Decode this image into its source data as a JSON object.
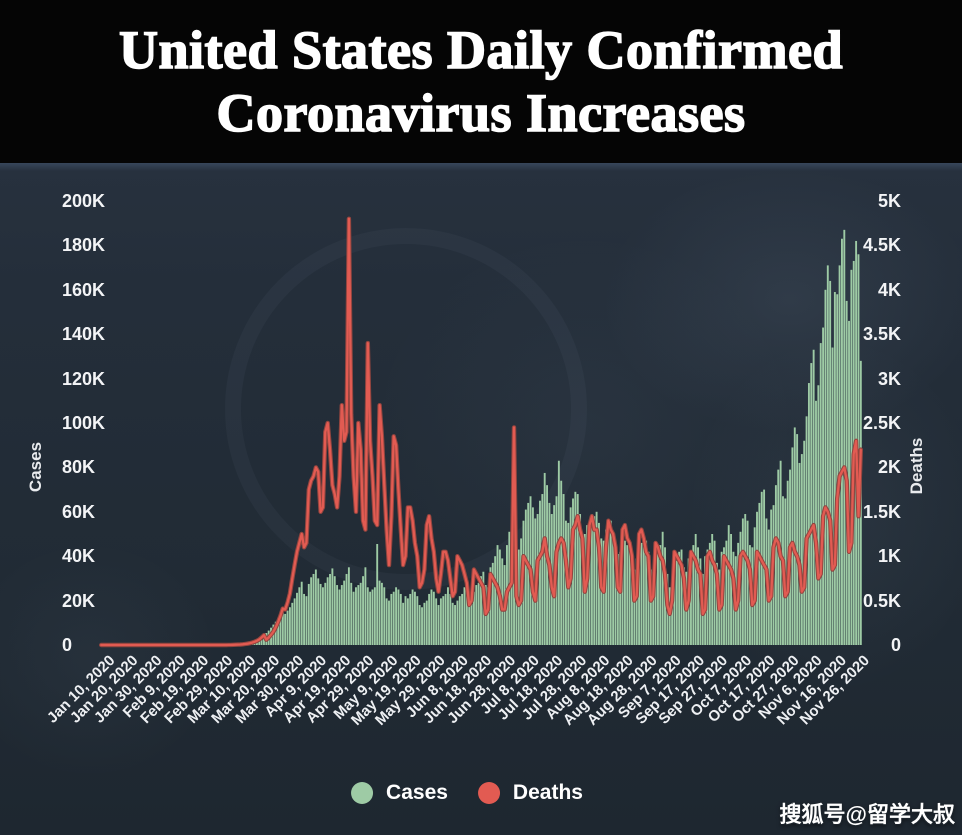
{
  "page": {
    "watermark": "搜狐号@留学大叔"
  },
  "chart_data": {
    "type": "combo",
    "title": "United States Daily Confirmed Coronavirus Increases",
    "title_line1": "United States Daily Confirmed",
    "title_line2": "Coronavirus Increases",
    "grid": false,
    "legend_position": "bottom",
    "background_color": "#232d39",
    "tick_every": 10,
    "x_tick_labels": [
      "Jan 10, 2020",
      "Jan 20, 2020",
      "Jan 30, 2020",
      "Feb 9, 2020",
      "Feb 19, 2020",
      "Feb 29, 2020",
      "Mar 10, 2020",
      "Mar 20, 2020",
      "Mar 30, 2020",
      "Apr 9, 2020",
      "Apr 19, 2020",
      "Apr 29, 2020",
      "May 9, 2020",
      "May 19, 2020",
      "May 29, 2020",
      "Jun 8, 2020",
      "Jun 18, 2020",
      "Jun 28, 2020",
      "Jul 8, 2020",
      "Jul 18, 2020",
      "Jul 28, 2020",
      "Aug 8, 2020",
      "Aug 18, 2020",
      "Aug 28, 2020",
      "Sep 7, 2020",
      "Sep 17, 2020",
      "Sep 27, 2020",
      "Oct 7, 2020",
      "Oct 17, 2020",
      "Oct 27, 2020",
      "Nov 6, 2020",
      "Nov 16, 2020",
      "Nov 26, 2020"
    ],
    "axes": {
      "left": {
        "label": "Cases",
        "max": 200000,
        "range": [
          0,
          200000
        ],
        "ticks": [
          "0",
          "20K",
          "40K",
          "60K",
          "80K",
          "100K",
          "120K",
          "140K",
          "160K",
          "180K",
          "200K"
        ]
      },
      "right": {
        "label": "Deaths",
        "max": 5000,
        "range": [
          0,
          5000
        ],
        "ticks": [
          "0",
          "0.5K",
          "1K",
          "1.5K",
          "2K",
          "2.5K",
          "3K",
          "3.5K",
          "4K",
          "4.5K",
          "5K"
        ]
      }
    },
    "legend": [
      {
        "label": "Cases",
        "color": "#9ecba5"
      },
      {
        "label": "Deaths",
        "color": "#e25b52"
      }
    ],
    "series": [
      {
        "name": "Cases",
        "type": "bar",
        "axis": "left",
        "color": "#9ecba5",
        "values": [
          0,
          0,
          0,
          0,
          0,
          0,
          0,
          0,
          0,
          0,
          0,
          0,
          0,
          0,
          0,
          0,
          0,
          0,
          0,
          0,
          0,
          0,
          0,
          0,
          0,
          0,
          0,
          0,
          0,
          0,
          0,
          0,
          0,
          0,
          0,
          0,
          0,
          0,
          0,
          0,
          0,
          0,
          0,
          0,
          0,
          0,
          0,
          0,
          0,
          0,
          0,
          10,
          10,
          20,
          30,
          50,
          70,
          100,
          150,
          220,
          320,
          450,
          600,
          800,
          1100,
          1500,
          2000,
          2700,
          3500,
          4400,
          5400,
          6500,
          7800,
          9200,
          10500,
          12000,
          13500,
          14500,
          14000,
          15500,
          17000,
          19000,
          21000,
          23500,
          26000,
          28500,
          23000,
          22000,
          27500,
          30500,
          32000,
          34000,
          30000,
          27500,
          26000,
          28000,
          30500,
          32000,
          34500,
          31000,
          27000,
          25000,
          27000,
          29000,
          32000,
          35000,
          28000,
          24000,
          26000,
          27000,
          28000,
          31000,
          35000,
          26000,
          24000,
          25000,
          26000,
          45500,
          29000,
          28000,
          26000,
          21000,
          20000,
          23000,
          24000,
          26000,
          25000,
          23000,
          19000,
          22000,
          21000,
          23000,
          25000,
          24000,
          22000,
          18000,
          17000,
          19000,
          20000,
          23000,
          25000,
          24000,
          21000,
          18000,
          21000,
          22000,
          23000,
          26000,
          23000,
          19000,
          18000,
          20000,
          22000,
          23000,
          26000,
          25000,
          21000,
          19000,
          24000,
          27000,
          28000,
          31000,
          33000,
          27000,
          26000,
          35000,
          37000,
          40000,
          45000,
          43000,
          39000,
          36000,
          45000,
          51000,
          55000,
          57000,
          46000,
          43000,
          48000,
          56000,
          61000,
          64000,
          67000,
          62000,
          57000,
          59000,
          65000,
          68000,
          77500,
          72000,
          64000,
          59000,
          63000,
          67000,
          83000,
          74000,
          68000,
          56000,
          55000,
          62000,
          66000,
          69000,
          68000,
          59000,
          48000,
          50000,
          54000,
          56000,
          59000,
          58000,
          60000,
          55000,
          48000,
          47000,
          52000,
          54000,
          56000,
          51000,
          43000,
          41000,
          42000,
          45000,
          47000,
          45000,
          43000,
          35000,
          34000,
          39000,
          44000,
          46000,
          45000,
          47000,
          42000,
          34000,
          33000,
          40000,
          41000,
          45000,
          51000,
          44000,
          32000,
          26000,
          28000,
          36000,
          38000,
          42000,
          43000,
          35000,
          33000,
          39000,
          40000,
          45000,
          50000,
          44000,
          39000,
          32000,
          40000,
          43000,
          46000,
          50000,
          47000,
          37000,
          34000,
          42000,
          44000,
          47000,
          54000,
          50000,
          42000,
          40000,
          46000,
          51000,
          57000,
          59000,
          56000,
          45000,
          44000,
          53000,
          60000,
          64000,
          69000,
          70000,
          57000,
          52000,
          61000,
          63000,
          72000,
          79000,
          83000,
          67000,
          66000,
          74000,
          79000,
          89000,
          98000,
          95000,
          82000,
          86000,
          92000,
          103000,
          118000,
          127000,
          133000,
          110000,
          117000,
          136000,
          143000,
          160000,
          171000,
          164000,
          134000,
          159000,
          158000,
          171000,
          183000,
          187000,
          155000,
          146000,
          169000,
          173000,
          182000,
          176000,
          128000
        ]
      },
      {
        "name": "Deaths",
        "type": "line",
        "axis": "right",
        "color": "#e25b52",
        "halo_color": "#93453f",
        "values": [
          0,
          0,
          0,
          0,
          0,
          0,
          0,
          0,
          0,
          0,
          0,
          0,
          0,
          0,
          0,
          0,
          0,
          0,
          0,
          0,
          0,
          0,
          0,
          0,
          0,
          0,
          0,
          0,
          0,
          0,
          0,
          0,
          0,
          0,
          0,
          0,
          0,
          0,
          0,
          0,
          0,
          0,
          0,
          0,
          0,
          0,
          0,
          0,
          0,
          0,
          0,
          0,
          0,
          0,
          1,
          1,
          2,
          3,
          4,
          6,
          8,
          11,
          15,
          20,
          27,
          36,
          47,
          62,
          85,
          110,
          60,
          85,
          115,
          150,
          200,
          260,
          330,
          410,
          400,
          480,
          580,
          750,
          900,
          1050,
          1150,
          1250,
          1100,
          1150,
          1750,
          1850,
          1900,
          2000,
          1950,
          1500,
          1550,
          2400,
          2500,
          2200,
          1800,
          1700,
          1550,
          1900,
          2700,
          2300,
          2400,
          4800,
          2600,
          1900,
          1500,
          2500,
          2200,
          1400,
          1300,
          3400,
          2300,
          1900,
          1400,
          1350,
          2700,
          2350,
          1800,
          1300,
          900,
          1450,
          2350,
          2250,
          1750,
          1300,
          900,
          1000,
          1550,
          1550,
          1400,
          1150,
          1000,
          650,
          700,
          850,
          1350,
          1450,
          1200,
          1050,
          750,
          600,
          800,
          1050,
          1050,
          950,
          750,
          550,
          600,
          1000,
          950,
          900,
          800,
          700,
          450,
          500,
          850,
          800,
          750,
          700,
          650,
          350,
          400,
          800,
          750,
          700,
          650,
          550,
          400,
          400,
          600,
          650,
          700,
          2450,
          550,
          450,
          500,
          1000,
          950,
          900,
          850,
          600,
          500,
          950,
          1000,
          1050,
          1200,
          1000,
          900,
          650,
          550,
          1050,
          1150,
          1200,
          1150,
          950,
          650,
          750,
          1300,
          1350,
          1450,
          1300,
          1200,
          600,
          750,
          1350,
          1450,
          1300,
          1300,
          1100,
          650,
          600,
          1100,
          1400,
          1300,
          1250,
          1100,
          650,
          600,
          1300,
          1350,
          1200,
          1150,
          1000,
          500,
          550,
          1250,
          1300,
          1200,
          1050,
          1000,
          500,
          550,
          1150,
          1100,
          1000,
          950,
          800,
          450,
          350,
          500,
          1050,
          1000,
          950,
          900,
          750,
          400,
          500,
          1050,
          1000,
          950,
          850,
          800,
          350,
          400,
          1000,
          1050,
          950,
          900,
          800,
          400,
          450,
          1000,
          950,
          900,
          850,
          750,
          400,
          500,
          1000,
          1050,
          1000,
          950,
          850,
          450,
          500,
          1050,
          1000,
          950,
          900,
          850,
          500,
          550,
          1100,
          1200,
          1150,
          1000,
          950,
          550,
          600,
          1100,
          1150,
          1050,
          1000,
          900,
          600,
          650,
          1200,
          1250,
          1300,
          1350,
          1150,
          750,
          800,
          1450,
          1550,
          1500,
          1400,
          850,
          900,
          1650,
          1900,
          1950,
          2000,
          1850,
          1050,
          1150,
          2150,
          2300,
          1450,
          2200
        ]
      }
    ]
  }
}
